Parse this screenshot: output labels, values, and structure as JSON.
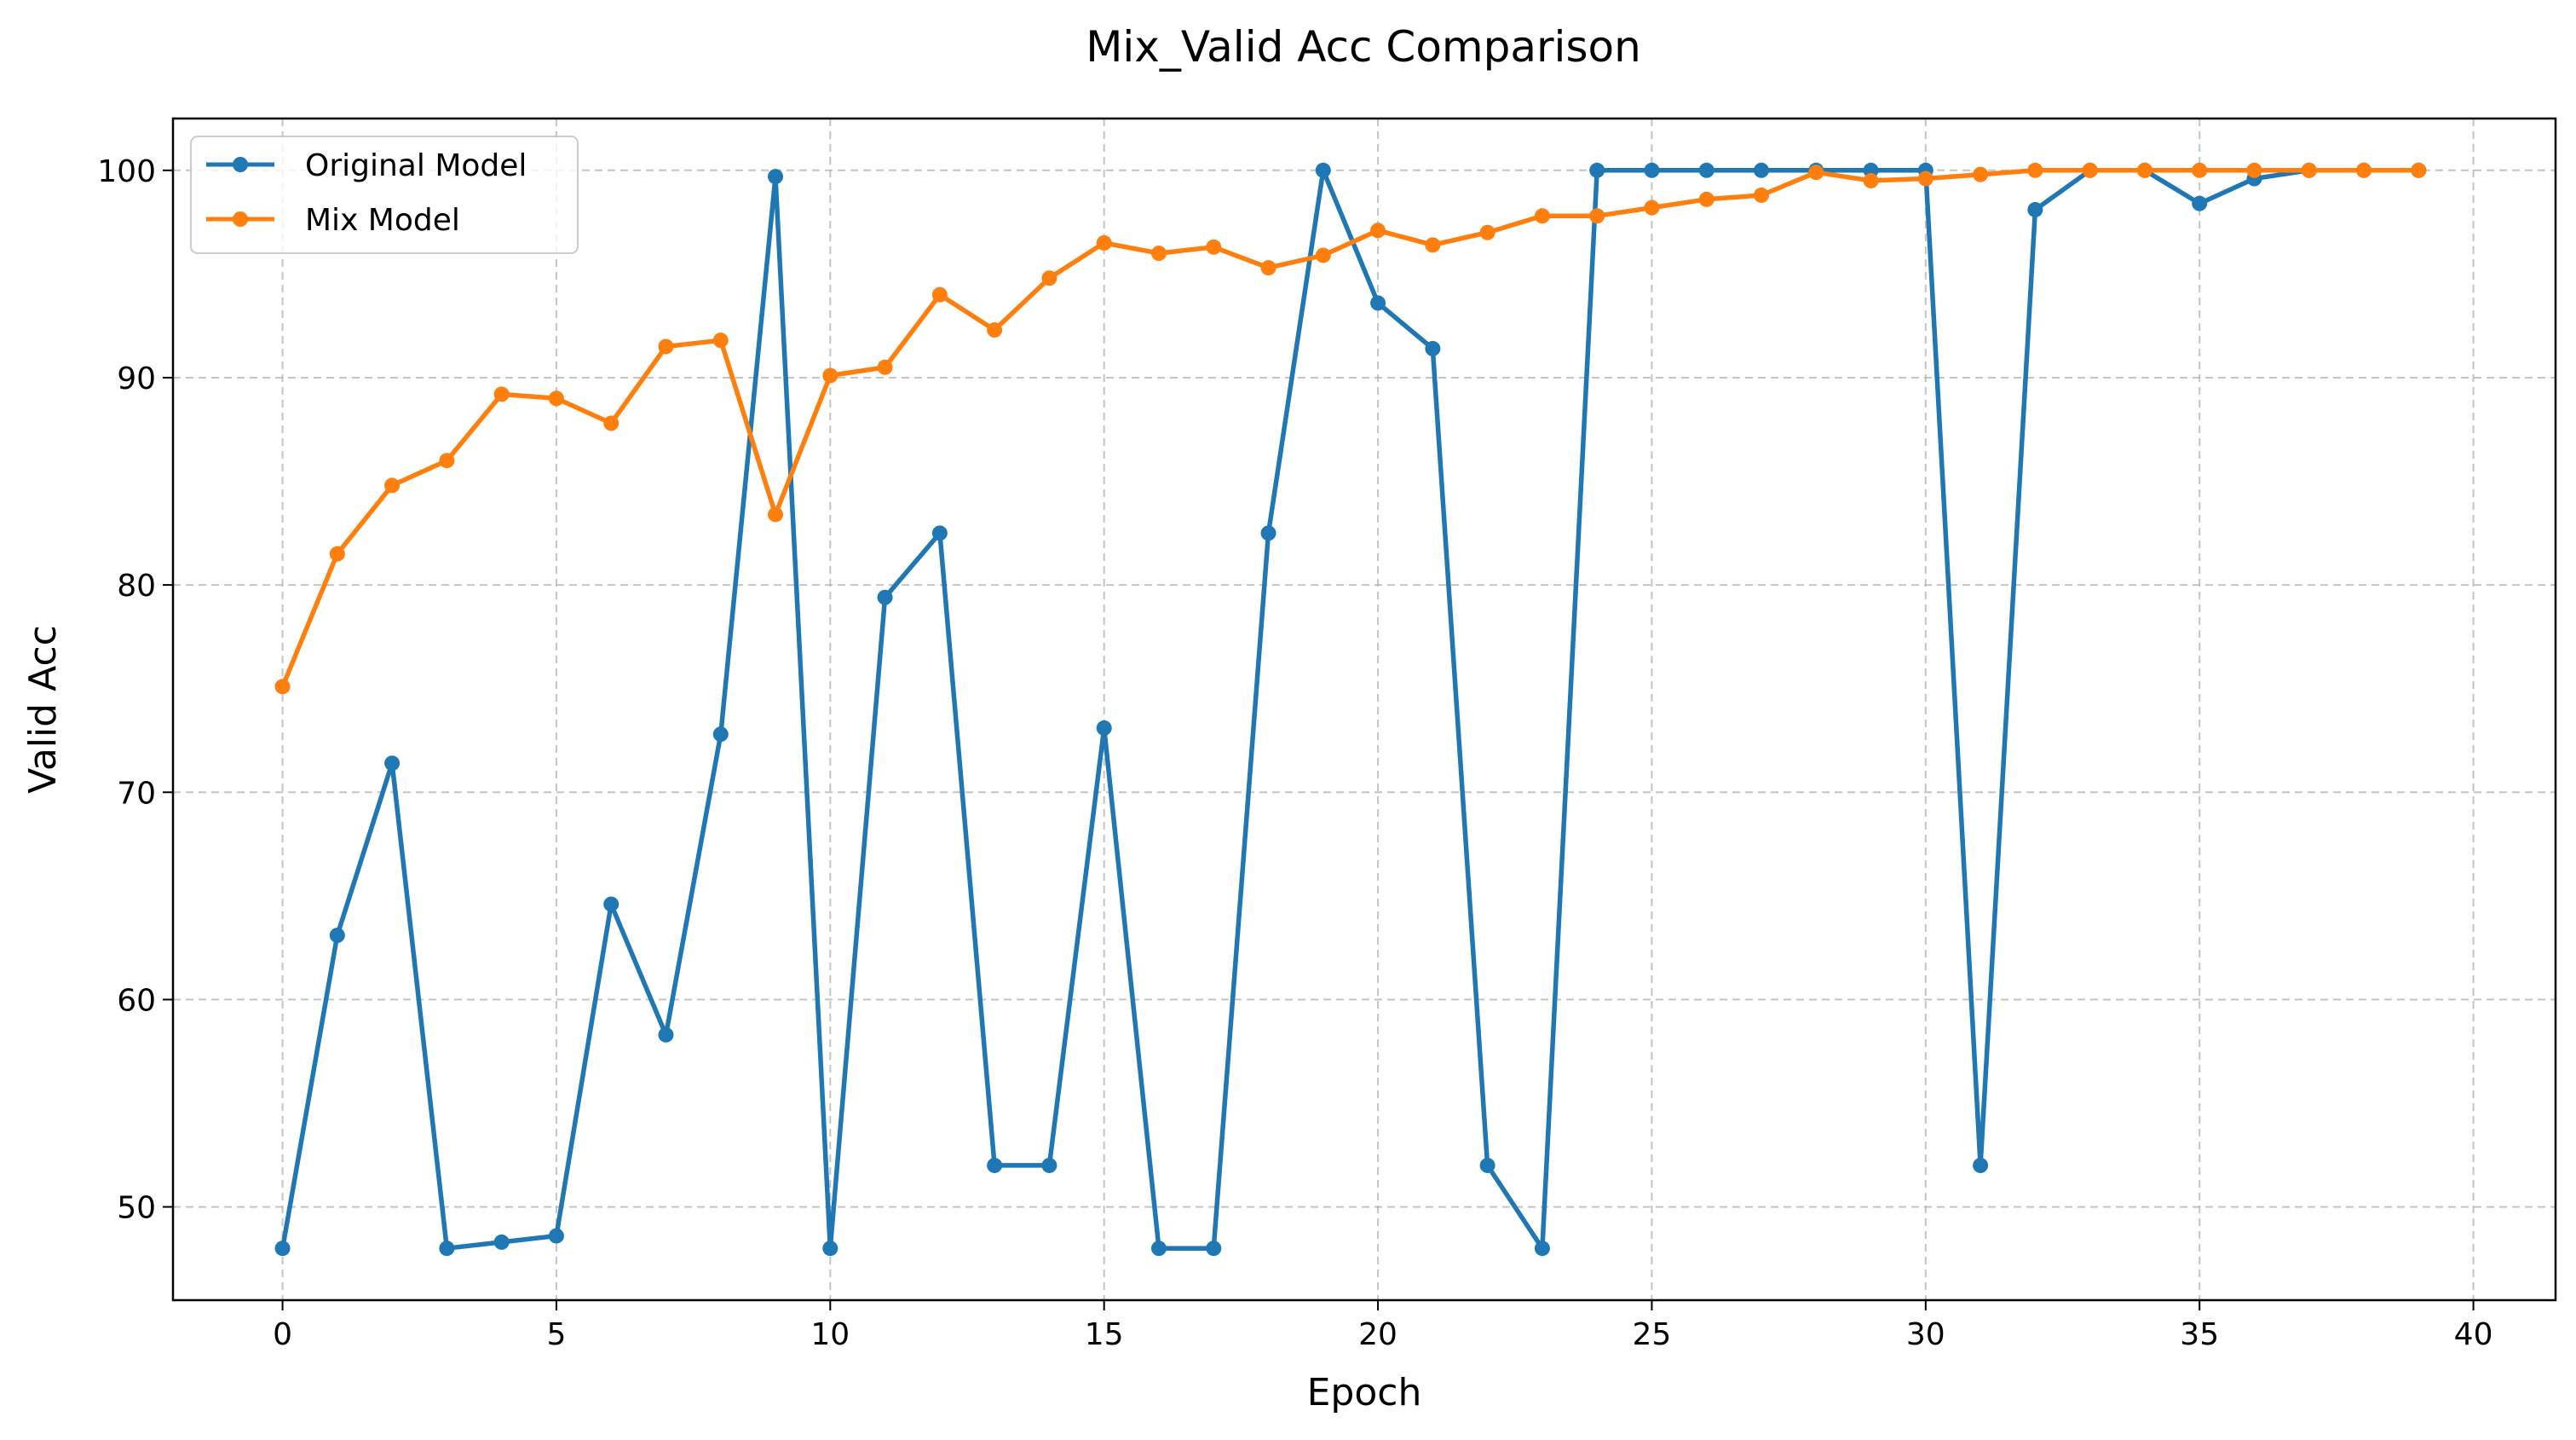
{
  "chart_data": {
    "type": "line",
    "title": "Mix_Valid Acc Comparison",
    "xlabel": "Epoch",
    "ylabel": "Valid Acc",
    "xlim": [
      -2,
      41.5
    ],
    "ylim": [
      45.5,
      102.5
    ],
    "xticks": [
      0,
      5,
      10,
      15,
      20,
      25,
      30,
      35,
      40
    ],
    "yticks": [
      50,
      60,
      70,
      80,
      90,
      100
    ],
    "grid": true,
    "legend": "top-left",
    "x": [
      0,
      1,
      2,
      3,
      4,
      5,
      6,
      7,
      8,
      9,
      10,
      11,
      12,
      13,
      14,
      15,
      16,
      17,
      18,
      19,
      20,
      21,
      22,
      23,
      24,
      25,
      26,
      27,
      28,
      29,
      30,
      31,
      32,
      33,
      34,
      35,
      36,
      37,
      38,
      39
    ],
    "series": [
      {
        "name": "Original Model",
        "color": "#1f77b4",
        "values": [
          48.0,
          63.1,
          71.4,
          48.0,
          48.3,
          48.6,
          64.6,
          58.3,
          72.8,
          99.7,
          48.0,
          79.4,
          82.5,
          52.0,
          52.0,
          73.1,
          48.0,
          48.0,
          82.5,
          100.0,
          93.6,
          91.4,
          52.0,
          48.0,
          100.0,
          100.0,
          100.0,
          100.0,
          100.0,
          100.0,
          100.0,
          52.0,
          98.1,
          100.0,
          100.0,
          98.4,
          99.6,
          100.0,
          100.0,
          100.0
        ]
      },
      {
        "name": "Mix Model",
        "color": "#ff7f0e",
        "values": [
          75.1,
          81.5,
          84.8,
          86.0,
          89.2,
          89.0,
          87.8,
          91.5,
          91.8,
          83.4,
          90.1,
          90.5,
          94.0,
          92.3,
          94.8,
          96.5,
          96.0,
          96.3,
          95.3,
          95.9,
          97.1,
          96.4,
          97.0,
          97.8,
          97.8,
          98.2,
          98.6,
          98.8,
          99.9,
          99.5,
          99.6,
          99.8,
          100.0,
          100.0,
          100.0,
          100.0,
          100.0,
          100.0,
          100.0,
          100.0
        ]
      }
    ]
  }
}
